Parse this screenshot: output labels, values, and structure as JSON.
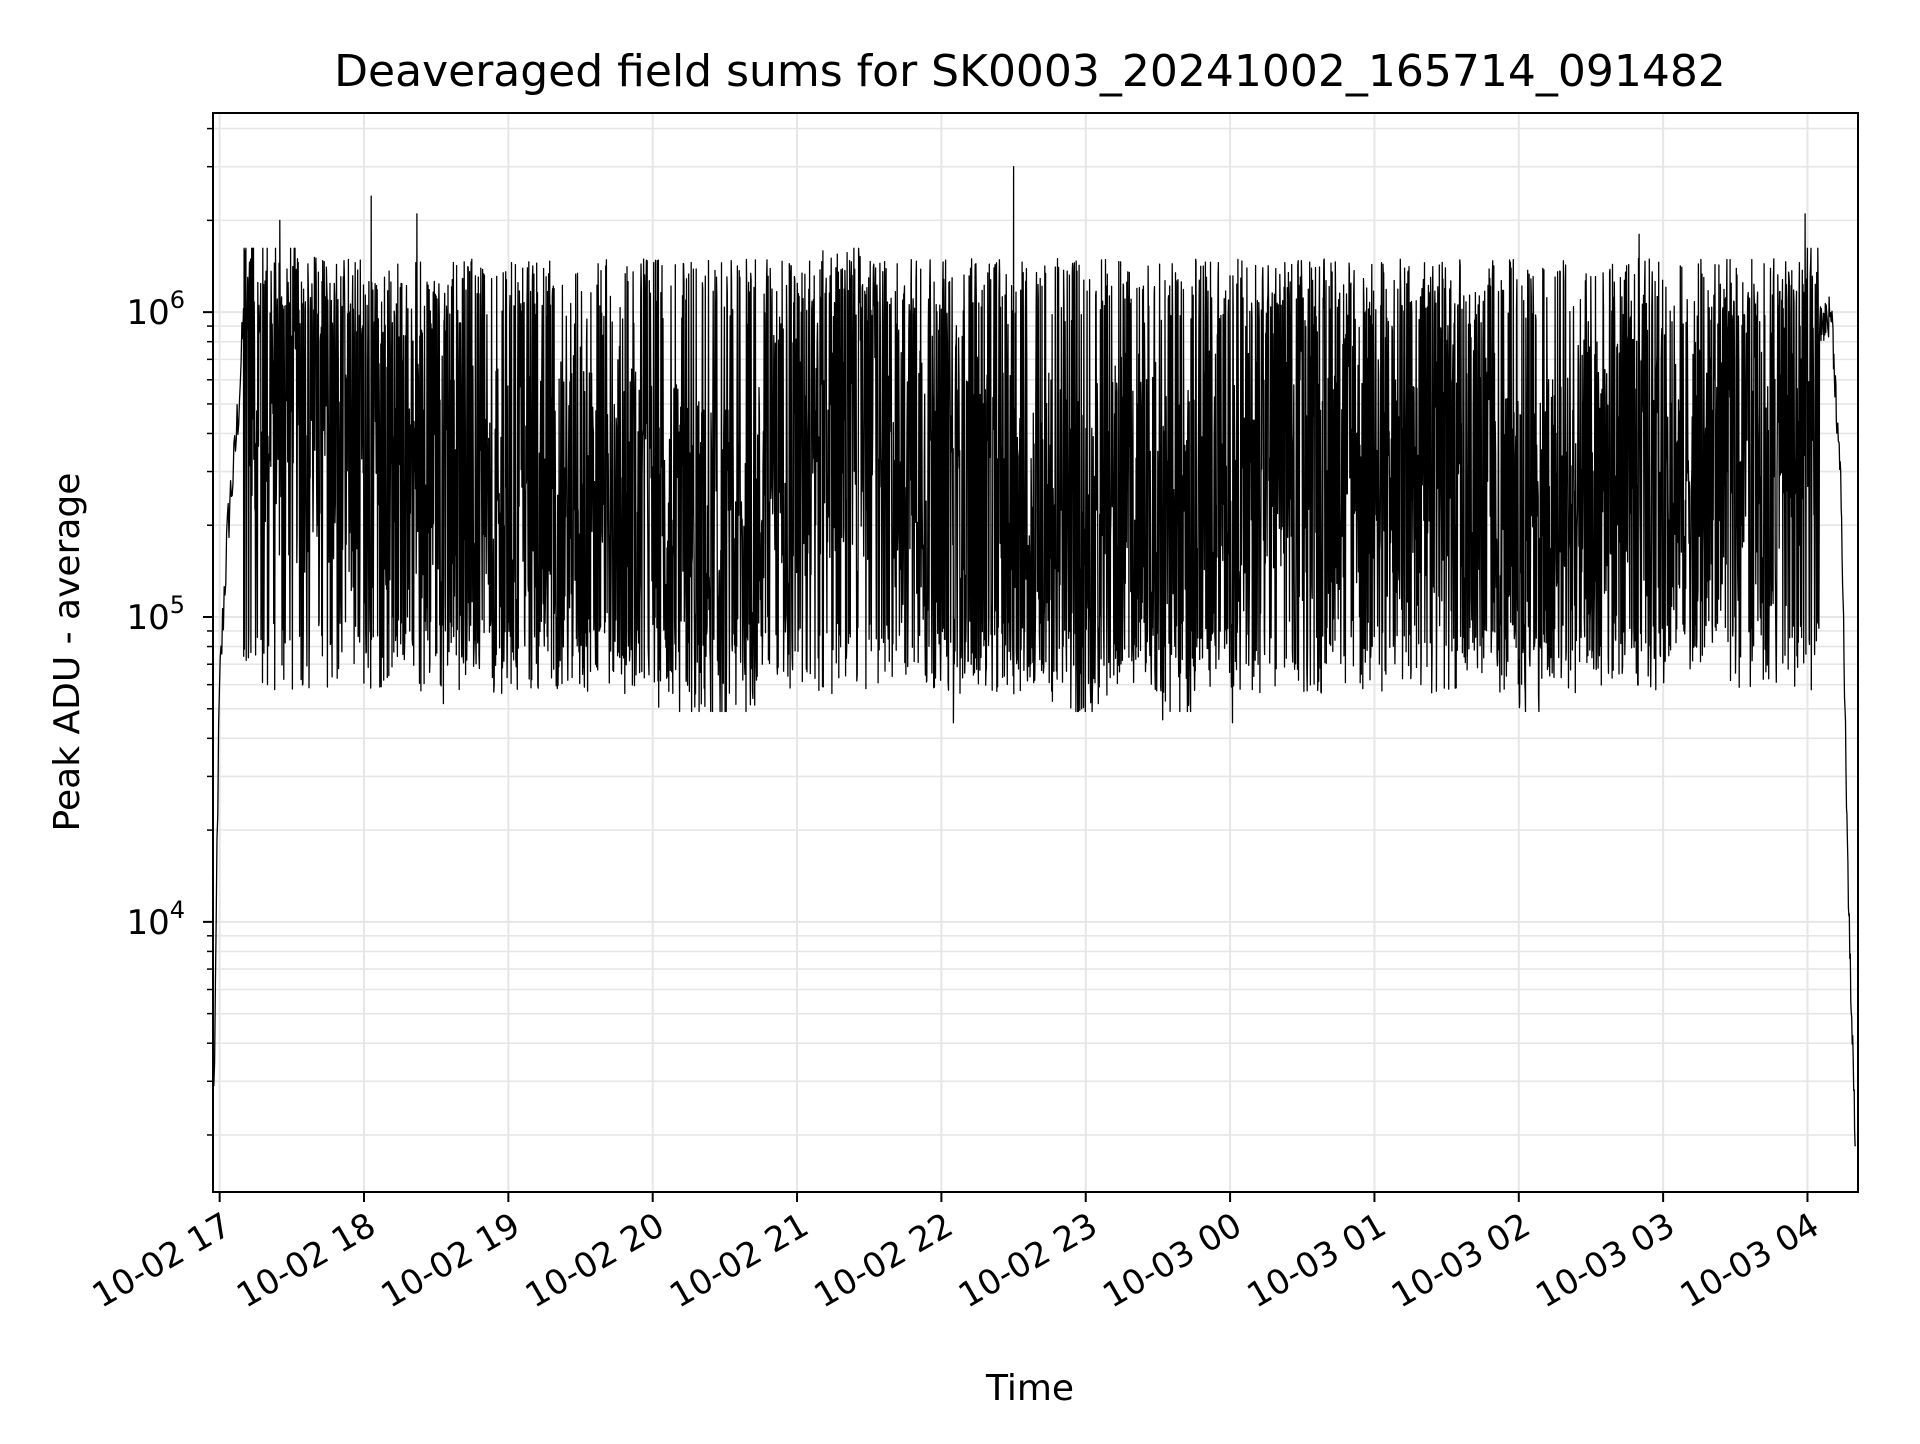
{
  "chart_data": {
    "type": "line",
    "title": "Deaveraged field sums for SK0003_20241002_165714_091482",
    "xlabel": "Time",
    "ylabel": "Peak ADU - average",
    "yscale": "log",
    "ylim": [
      1300,
      4500000
    ],
    "xlim": [
      "2024-10-02 16:57:14",
      "2024-10-03 04:21:00"
    ],
    "grid": true,
    "grid_which": "both",
    "line_color": "#000000",
    "x_ticks": [
      {
        "value": "2024-10-02 17:00",
        "label": "10-02 17"
      },
      {
        "value": "2024-10-02 18:00",
        "label": "10-02 18"
      },
      {
        "value": "2024-10-02 19:00",
        "label": "10-02 19"
      },
      {
        "value": "2024-10-02 20:00",
        "label": "10-02 20"
      },
      {
        "value": "2024-10-02 21:00",
        "label": "10-02 21"
      },
      {
        "value": "2024-10-02 22:00",
        "label": "10-02 22"
      },
      {
        "value": "2024-10-02 23:00",
        "label": "10-02 23"
      },
      {
        "value": "2024-10-03 00:00",
        "label": "10-03 00"
      },
      {
        "value": "2024-10-03 01:00",
        "label": "10-03 01"
      },
      {
        "value": "2024-10-03 02:00",
        "label": "10-03 02"
      },
      {
        "value": "2024-10-03 03:00",
        "label": "10-03 03"
      },
      {
        "value": "2024-10-03 04:00",
        "label": "10-03 04"
      }
    ],
    "y_ticks": [
      {
        "value": 10000,
        "base": "10",
        "exp": "4"
      },
      {
        "value": 100000,
        "base": "10",
        "exp": "5"
      },
      {
        "value": 1000000,
        "base": "10",
        "exp": "6"
      }
    ],
    "series": [
      {
        "x": [
          "2024-10-02 16:57:14",
          "2024-10-02 16:58:00",
          "2024-10-02 16:59:00",
          "2024-10-02 17:00:00",
          "2024-10-02 17:02:00",
          "2024-10-02 17:04:00",
          "2024-10-02 17:06:00",
          "2024-10-02 17:08:00",
          "2024-10-02 17:10:00",
          "2024-10-02 17:12:00",
          "2024-10-02 17:15:00",
          "2024-10-02 17:30:00",
          "2024-10-02 17:45:00",
          "2024-10-02 18:00:00",
          "2024-10-02 18:15:00",
          "2024-10-02 18:30:00",
          "2024-10-02 18:45:00",
          "2024-10-02 19:00:00",
          "2024-10-02 19:20:00",
          "2024-10-02 19:40:00",
          "2024-10-02 20:00:00",
          "2024-10-02 20:20:00",
          "2024-10-02 20:40:00",
          "2024-10-02 21:00:00",
          "2024-10-02 21:20:00",
          "2024-10-02 21:40:00",
          "2024-10-02 22:00:00",
          "2024-10-02 22:20:00",
          "2024-10-02 22:40:00",
          "2024-10-02 23:00:00",
          "2024-10-02 23:20:00",
          "2024-10-02 23:40:00",
          "2024-10-03 00:00:00",
          "2024-10-03 00:20:00",
          "2024-10-03 00:40:00",
          "2024-10-03 01:00:00",
          "2024-10-03 01:20:00",
          "2024-10-03 01:40:00",
          "2024-10-03 02:00:00",
          "2024-10-03 02:20:00",
          "2024-10-03 02:40:00",
          "2024-10-03 03:00:00",
          "2024-10-03 03:20:00",
          "2024-10-03 03:40:00",
          "2024-10-03 03:55:00",
          "2024-10-03 04:05:00",
          "2024-10-03 04:10:00",
          "2024-10-03 04:14:00",
          "2024-10-03 04:17:00",
          "2024-10-03 04:20:00"
        ],
        "y": [
          3000,
          3100,
          20000,
          55000,
          120000,
          220000,
          300000,
          500000,
          900000,
          1200000,
          600000,
          500000,
          450000,
          300000,
          250000,
          350000,
          200000,
          180000,
          200000,
          250000,
          180000,
          150000,
          150000,
          400000,
          500000,
          400000,
          300000,
          200000,
          200000,
          150000,
          250000,
          150000,
          300000,
          400000,
          350000,
          300000,
          400000,
          350000,
          150000,
          200000,
          300000,
          250000,
          300000,
          350000,
          400000,
          900000,
          1000000,
          250000,
          12000,
          1700
        ],
        "peaks": [
          {
            "x": "2024-10-02 17:25:00",
            "y": 2000000
          },
          {
            "x": "2024-10-02 18:03:00",
            "y": 2400000
          },
          {
            "x": "2024-10-02 18:22:00",
            "y": 2100000
          },
          {
            "x": "2024-10-02 22:30:00",
            "y": 3000000
          },
          {
            "x": "2024-10-03 02:50:00",
            "y": 1800000
          },
          {
            "x": "2024-10-03 03:59:00",
            "y": 2100000
          }
        ],
        "troughs": [
          {
            "x": "2024-10-02 18:33:00",
            "y": 52000
          },
          {
            "x": "2024-10-02 22:05:00",
            "y": 45000
          },
          {
            "x": "2024-10-02 23:32:00",
            "y": 46000
          },
          {
            "x": "2024-10-03 00:01:00",
            "y": 45000
          }
        ],
        "band_upper": 1200000,
        "band_lower": 70000
      }
    ]
  }
}
